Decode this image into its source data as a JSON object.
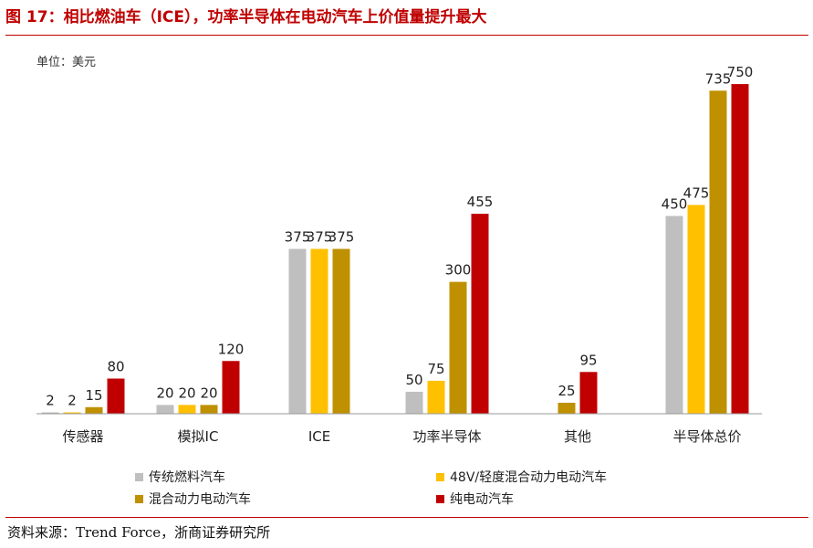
{
  "figure": {
    "title": "图 17：相比燃油车（ICE），功率半导体在电动汽车上价值量提升最大",
    "source": "资料来源：Trend Force，浙商证券研究所"
  },
  "chart_data": {
    "type": "bar",
    "unit_label": "单位：美元",
    "categories": [
      "传感器",
      "模拟IC",
      "ICE",
      "功率半导体",
      "其他",
      "半导体总价"
    ],
    "series": [
      {
        "name": "传统燃料汽车",
        "color": "#bfbfbf",
        "values": [
          2,
          20,
          375,
          50,
          null,
          450
        ]
      },
      {
        "name": "48V/轻度混合动力电动汽车",
        "color": "#ffc000",
        "values": [
          2,
          20,
          375,
          75,
          null,
          475
        ]
      },
      {
        "name": "混合动力电动汽车",
        "color": "#bf9000",
        "values": [
          15,
          20,
          375,
          300,
          25,
          735
        ]
      },
      {
        "name": "纯电动汽车",
        "color": "#c00000",
        "values": [
          80,
          120,
          null,
          455,
          95,
          750
        ]
      }
    ],
    "ylim": [
      0,
      800
    ],
    "grid": false,
    "legend_position": "bottom"
  }
}
